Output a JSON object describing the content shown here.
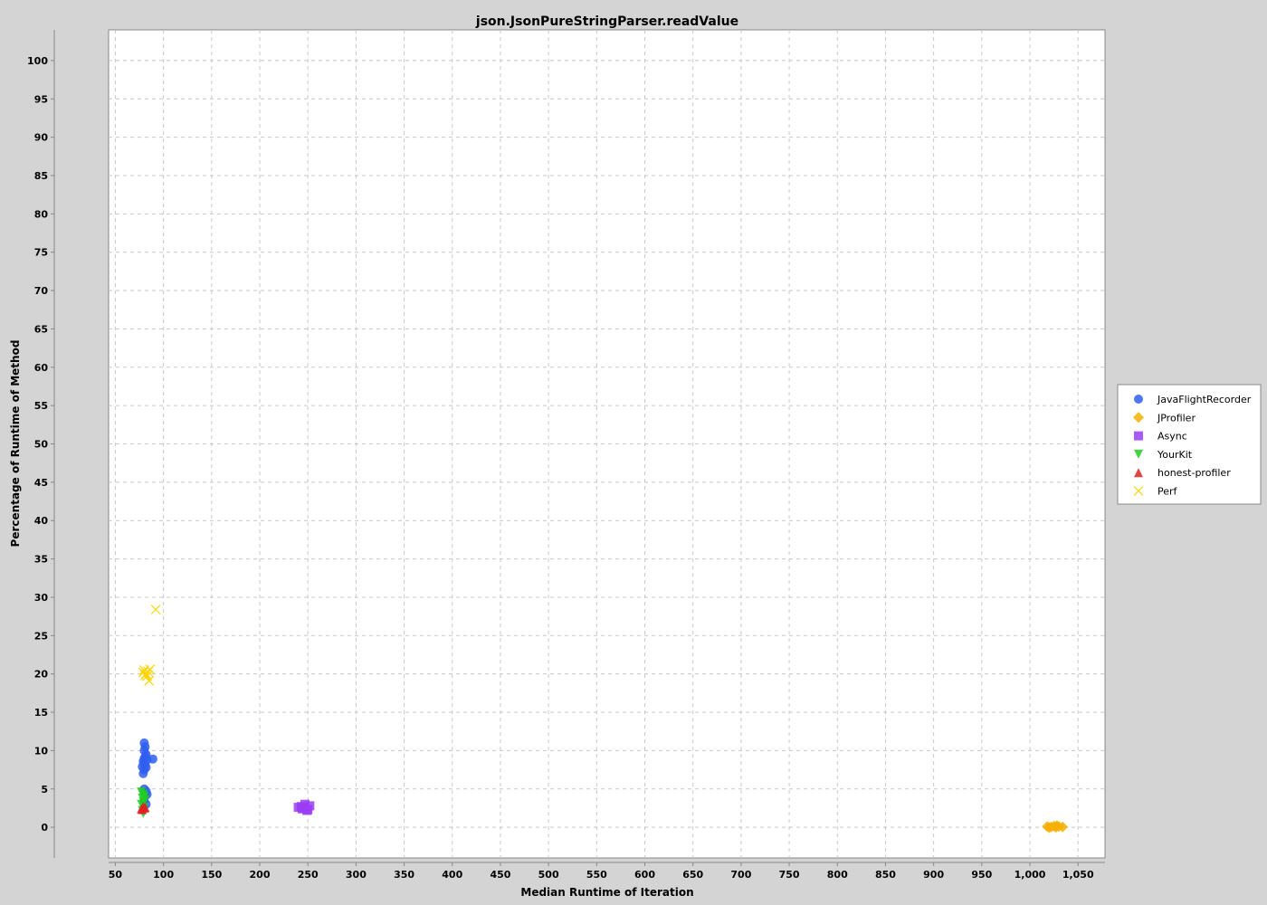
{
  "chart_data": {
    "type": "scatter",
    "title": "json.JsonPureStringParser.readValue",
    "xlabel": "Median Runtime of Iteration",
    "ylabel": "Percentage of Runtime of Method",
    "xlim": [
      43,
      1078
    ],
    "ylim": [
      -4,
      104
    ],
    "xticks": [
      50,
      100,
      150,
      200,
      250,
      300,
      350,
      400,
      450,
      500,
      550,
      600,
      650,
      700,
      750,
      800,
      850,
      900,
      950,
      1000,
      1050
    ],
    "xtick_labels": [
      "50",
      "100",
      "150",
      "200",
      "250",
      "300",
      "350",
      "400",
      "450",
      "500",
      "550",
      "600",
      "650",
      "700",
      "750",
      "800",
      "850",
      "900",
      "950",
      "1,000",
      "1,050"
    ],
    "yticks": [
      0,
      5,
      10,
      15,
      20,
      25,
      30,
      35,
      40,
      45,
      50,
      55,
      60,
      65,
      70,
      75,
      80,
      85,
      90,
      95,
      100
    ],
    "ytick_labels": [
      "0",
      "5",
      "10",
      "15",
      "20",
      "25",
      "30",
      "35",
      "40",
      "45",
      "50",
      "55",
      "60",
      "65",
      "70",
      "75",
      "80",
      "85",
      "90",
      "95",
      "100"
    ],
    "grid": true,
    "legend_position": "right",
    "series": [
      {
        "name": "JavaFlightRecorder",
        "marker": "circle",
        "color": "#2f5ef0",
        "points": [
          [
            80,
            11
          ],
          [
            81,
            10.5
          ],
          [
            80,
            10
          ],
          [
            82,
            9.5
          ],
          [
            81,
            9.2
          ],
          [
            80,
            9
          ],
          [
            83,
            8.8
          ],
          [
            89,
            8.9
          ],
          [
            79,
            8.6
          ],
          [
            80,
            8.3
          ],
          [
            81,
            8.1
          ],
          [
            78,
            7.9
          ],
          [
            82,
            7.8
          ],
          [
            80,
            7.5
          ],
          [
            79,
            7
          ],
          [
            80,
            5
          ],
          [
            82,
            4.7
          ],
          [
            83,
            4.3
          ],
          [
            81,
            4.1
          ],
          [
            80,
            3.5
          ],
          [
            82,
            3
          ]
        ]
      },
      {
        "name": "JProfiler",
        "marker": "diamond",
        "color": "#f5b000",
        "points": [
          [
            1018,
            0.1
          ],
          [
            1022,
            0.05
          ],
          [
            1025,
            0.15
          ],
          [
            1027,
            0
          ],
          [
            1030,
            0.1
          ],
          [
            1034,
            0.05
          ],
          [
            1020,
            -0.05
          ],
          [
            1028,
            0.2
          ]
        ]
      },
      {
        "name": "Async",
        "marker": "square",
        "color": "#9b3df5",
        "points": [
          [
            240,
            2.6
          ],
          [
            244,
            2.4
          ],
          [
            247,
            3
          ],
          [
            249,
            2.2
          ],
          [
            252,
            2.8
          ],
          [
            246,
            2.5
          ],
          [
            243,
            2.7
          ],
          [
            250,
            2.3
          ]
        ]
      },
      {
        "name": "YourKit",
        "marker": "triangle-down",
        "color": "#22cc22",
        "points": [
          [
            77,
            4.6
          ],
          [
            79,
            4.3
          ],
          [
            80,
            4
          ],
          [
            78,
            3.8
          ],
          [
            81,
            3.6
          ],
          [
            79,
            3.3
          ],
          [
            77,
            3
          ],
          [
            80,
            2.6
          ],
          [
            78,
            2.2
          ],
          [
            79,
            1.8
          ]
        ]
      },
      {
        "name": "honest-profiler",
        "marker": "triangle-up",
        "color": "#dd2222",
        "points": [
          [
            77,
            2.4
          ],
          [
            79,
            2.7
          ],
          [
            80,
            2.5
          ],
          [
            81,
            2.6
          ],
          [
            78,
            2.3
          ]
        ]
      },
      {
        "name": "Perf",
        "marker": "x",
        "color": "#ffd400",
        "points": [
          [
            92,
            28.4
          ],
          [
            80,
            20.5
          ],
          [
            82,
            20
          ],
          [
            84,
            20.3
          ],
          [
            86,
            20.6
          ],
          [
            81,
            19.8
          ],
          [
            83,
            19.7
          ],
          [
            85,
            19.1
          ],
          [
            79,
            20.2
          ]
        ]
      }
    ]
  }
}
